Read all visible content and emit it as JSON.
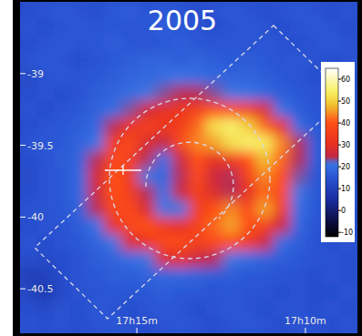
{
  "chart_data": {
    "type": "heatmap",
    "title": "2005",
    "xlim": [
      17.3077,
      17.141
    ],
    "xticks": [
      {
        "value": 17.25,
        "label": "17h15m"
      },
      {
        "value": 17.1667,
        "label": "17h10m"
      }
    ],
    "ylim": [
      -40.81,
      -38.5
    ],
    "yticks": [
      -39,
      -39.5,
      -40,
      -40.5
    ],
    "zlim": [
      -12,
      65
    ],
    "zticks": [
      60,
      50,
      40,
      30,
      20,
      10,
      0,
      -10
    ],
    "cells": [
      [
        14,
        15,
        16,
        15,
        14,
        16,
        17,
        15,
        16,
        15,
        14,
        15,
        16,
        15,
        14,
        15,
        16,
        15,
        14,
        15
      ],
      [
        15,
        14,
        15,
        16,
        15,
        16,
        15,
        16,
        17,
        16,
        15,
        14,
        15,
        16,
        15,
        14,
        15,
        16,
        15,
        14
      ],
      [
        14,
        15,
        16,
        15,
        16,
        17,
        16,
        15,
        16,
        17,
        16,
        15,
        16,
        15,
        16,
        15,
        14,
        15,
        16,
        15
      ],
      [
        15,
        16,
        15,
        14,
        15,
        16,
        17,
        18,
        18,
        17,
        18,
        17,
        16,
        17,
        16,
        15,
        16,
        15,
        14,
        15
      ],
      [
        13,
        15,
        16,
        15,
        16,
        17,
        18,
        19,
        20,
        21,
        20,
        19,
        18,
        18,
        17,
        16,
        15,
        14,
        15,
        14
      ],
      [
        14,
        15,
        14,
        15,
        17,
        18,
        20,
        22,
        23,
        24,
        24,
        23,
        22,
        21,
        19,
        17,
        16,
        15,
        14,
        15
      ],
      [
        15,
        14,
        15,
        16,
        18,
        20,
        23,
        27,
        30,
        32,
        36,
        40,
        38,
        35,
        28,
        21,
        17,
        15,
        16,
        15
      ],
      [
        14,
        15,
        16,
        17,
        19,
        24,
        32,
        36,
        33,
        34,
        42,
        52,
        55,
        50,
        42,
        30,
        20,
        16,
        15,
        14
      ],
      [
        15,
        16,
        16,
        18,
        21,
        34,
        38,
        28,
        25,
        38,
        44,
        46,
        52,
        55,
        54,
        44,
        24,
        17,
        15,
        14
      ],
      [
        14,
        15,
        17,
        18,
        24,
        38,
        36,
        24,
        20,
        26,
        40,
        30,
        34,
        40,
        48,
        42,
        24,
        17,
        15,
        14
      ],
      [
        13,
        15,
        16,
        19,
        27,
        40,
        34,
        22,
        19,
        24,
        38,
        26,
        24,
        36,
        44,
        40,
        23,
        16,
        15,
        14
      ],
      [
        14,
        15,
        16,
        19,
        26,
        40,
        35,
        24,
        20,
        26,
        36,
        28,
        24,
        30,
        42,
        38,
        22,
        16,
        15,
        15
      ],
      [
        15,
        15,
        16,
        18,
        24,
        38,
        38,
        28,
        22,
        22,
        34,
        40,
        44,
        38,
        46,
        34,
        20,
        16,
        15,
        14
      ],
      [
        14,
        15,
        15,
        17,
        21,
        30,
        38,
        40,
        34,
        30,
        36,
        42,
        46,
        40,
        36,
        26,
        19,
        15,
        14,
        14
      ],
      [
        15,
        14,
        15,
        16,
        18,
        22,
        28,
        32,
        38,
        38,
        36,
        38,
        40,
        34,
        26,
        20,
        17,
        15,
        14,
        15
      ],
      [
        14,
        13,
        14,
        15,
        17,
        18,
        20,
        22,
        28,
        30,
        26,
        24,
        22,
        20,
        18,
        17,
        16,
        15,
        15,
        14
      ],
      [
        9,
        11,
        14,
        15,
        16,
        17,
        17,
        18,
        19,
        19,
        18,
        17,
        17,
        16,
        16,
        15,
        15,
        14,
        15,
        14
      ],
      [
        12,
        8,
        13,
        15,
        15,
        16,
        16,
        16,
        17,
        16,
        16,
        15,
        16,
        15,
        15,
        14,
        15,
        14,
        14,
        15
      ],
      [
        14,
        13,
        15,
        14,
        16,
        15,
        14,
        15,
        16,
        15,
        14,
        15,
        16,
        15,
        14,
        15,
        15,
        14,
        15,
        14
      ],
      [
        15,
        14,
        15,
        14,
        15,
        16,
        15,
        14,
        15,
        16,
        15,
        14,
        15,
        16,
        15,
        14,
        15,
        15,
        14,
        15
      ]
    ]
  }
}
